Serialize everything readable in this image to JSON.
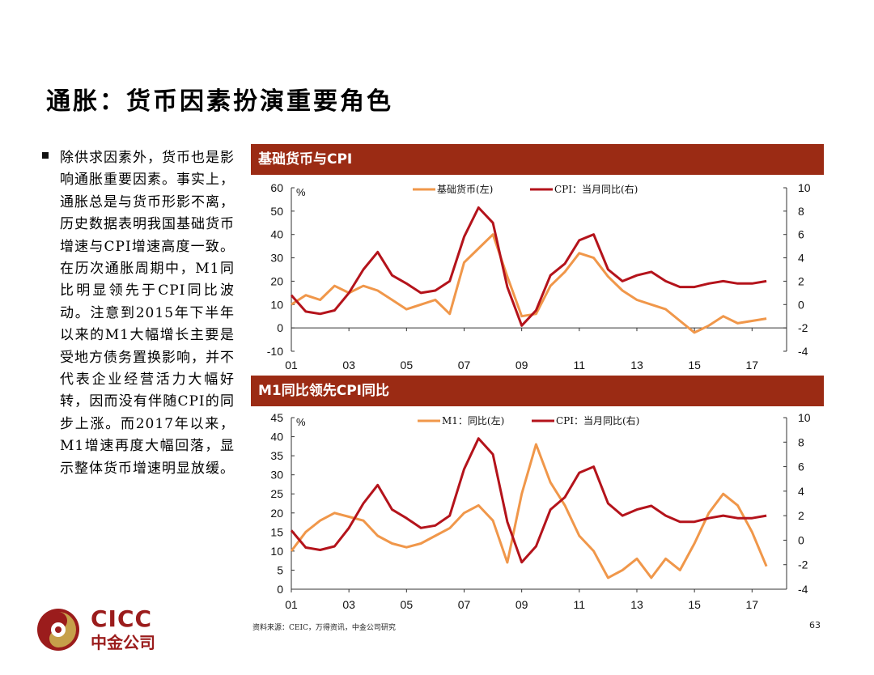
{
  "page": {
    "title": "通胀：货币因素扮演重要角色",
    "bullet": "除供求因素外，货币也是影响通胀重要因素。事实上，通胀总是与货币形影不离，历史数据表明我国基础货币增速与CPI增速高度一致。在历次通胀周期中，M1同比明显领先于CPI同比波动。注意到2015年下半年以来的M1大幅增长主要是受地方债务置换影响，并不代表企业经营活力大幅好转，因而没有伴随CPI的同步上涨。而2017年以来，M1增速再度大幅回落，显示整体货币增速明显放缓。",
    "source": "资料来源：CEIC，万得资讯，中金公司研究",
    "page_number": "63",
    "logo": {
      "latin": "CICC",
      "chinese": "中金公司"
    }
  },
  "colors": {
    "header_bg": "#9b2b14",
    "orange": "#f0974a",
    "red": "#b4131b",
    "brand": "#9b1c1c"
  },
  "chart_data": [
    {
      "type": "line",
      "title": "基础货币与CPI",
      "unit_left": "%",
      "x_ticks": [
        "01",
        "03",
        "05",
        "07",
        "09",
        "11",
        "13",
        "15",
        "17"
      ],
      "y_left": {
        "ticks": [
          60,
          50,
          40,
          30,
          20,
          10,
          0,
          -10
        ],
        "range": [
          -10,
          60
        ]
      },
      "y_right": {
        "ticks": [
          10,
          8,
          6,
          4,
          2,
          0,
          -2,
          -4
        ],
        "range": [
          -4,
          10
        ]
      },
      "series": [
        {
          "name": "基础货币(左)",
          "axis": "left",
          "x": [
            2001,
            2001.5,
            2002,
            2002.5,
            2003,
            2003.5,
            2004,
            2004.5,
            2005,
            2005.5,
            2006,
            2006.5,
            2007,
            2007.5,
            2008,
            2008.5,
            2009,
            2009.5,
            2010,
            2010.5,
            2011,
            2011.5,
            2012,
            2012.5,
            2013,
            2013.5,
            2014,
            2014.5,
            2015,
            2015.5,
            2016,
            2016.5,
            2017,
            2017.5
          ],
          "y": [
            10,
            14,
            12,
            18,
            15,
            18,
            16,
            12,
            8,
            10,
            12,
            6,
            28,
            34,
            40,
            22,
            5,
            6,
            18,
            24,
            32,
            30,
            22,
            16,
            12,
            10,
            8,
            3,
            -2,
            1,
            5,
            2,
            3,
            4
          ]
        },
        {
          "name": "CPI：当月同比(右)",
          "axis": "right",
          "x": [
            2001,
            2001.5,
            2002,
            2002.5,
            2003,
            2003.5,
            2004,
            2004.5,
            2005,
            2005.5,
            2006,
            2006.5,
            2007,
            2007.5,
            2008,
            2008.5,
            2009,
            2009.5,
            2010,
            2010.5,
            2011,
            2011.5,
            2012,
            2012.5,
            2013,
            2013.5,
            2014,
            2014.5,
            2015,
            2015.5,
            2016,
            2016.5,
            2017,
            2017.5
          ],
          "y": [
            0.8,
            -0.6,
            -0.8,
            -0.5,
            1.0,
            3.0,
            4.5,
            2.5,
            1.8,
            1.0,
            1.2,
            2.0,
            5.8,
            8.3,
            7.0,
            1.5,
            -1.8,
            -0.5,
            2.5,
            3.5,
            5.5,
            6.0,
            3.0,
            2.0,
            2.5,
            2.8,
            2.0,
            1.5,
            1.5,
            1.8,
            2.0,
            1.8,
            1.8,
            2.0
          ]
        }
      ]
    },
    {
      "type": "line",
      "title": "M1同比领先CPI同比",
      "unit_left": "%",
      "x_ticks": [
        "01",
        "03",
        "05",
        "07",
        "09",
        "11",
        "13",
        "15",
        "17"
      ],
      "y_left": {
        "ticks": [
          45,
          40,
          35,
          30,
          25,
          20,
          15,
          10,
          5,
          0
        ],
        "range": [
          0,
          45
        ]
      },
      "y_right": {
        "ticks": [
          10,
          8,
          6,
          4,
          2,
          0,
          -2,
          -4
        ],
        "range": [
          -4,
          10
        ]
      },
      "series": [
        {
          "name": "M1：同比(左)",
          "axis": "left",
          "x": [
            2001,
            2001.5,
            2002,
            2002.5,
            2003,
            2003.5,
            2004,
            2004.5,
            2005,
            2005.5,
            2006,
            2006.5,
            2007,
            2007.5,
            2008,
            2008.5,
            2009,
            2009.5,
            2010,
            2010.5,
            2011,
            2011.5,
            2012,
            2012.5,
            2013,
            2013.5,
            2014,
            2014.5,
            2015,
            2015.5,
            2016,
            2016.5,
            2017,
            2017.5
          ],
          "y": [
            10,
            15,
            18,
            20,
            19,
            18,
            14,
            12,
            11,
            12,
            14,
            16,
            20,
            22,
            18,
            7,
            25,
            38,
            28,
            22,
            14,
            10,
            3,
            5,
            8,
            3,
            8,
            5,
            12,
            20,
            25,
            22,
            15,
            6
          ]
        },
        {
          "name": "CPI：当月同比(右)",
          "axis": "right",
          "x": [
            2001,
            2001.5,
            2002,
            2002.5,
            2003,
            2003.5,
            2004,
            2004.5,
            2005,
            2005.5,
            2006,
            2006.5,
            2007,
            2007.5,
            2008,
            2008.5,
            2009,
            2009.5,
            2010,
            2010.5,
            2011,
            2011.5,
            2012,
            2012.5,
            2013,
            2013.5,
            2014,
            2014.5,
            2015,
            2015.5,
            2016,
            2016.5,
            2017,
            2017.5
          ],
          "y": [
            0.8,
            -0.6,
            -0.8,
            -0.5,
            1.0,
            3.0,
            4.5,
            2.5,
            1.8,
            1.0,
            1.2,
            2.0,
            5.8,
            8.3,
            7.0,
            1.5,
            -1.8,
            -0.5,
            2.5,
            3.5,
            5.5,
            6.0,
            3.0,
            2.0,
            2.5,
            2.8,
            2.0,
            1.5,
            1.5,
            1.8,
            2.0,
            1.8,
            1.8,
            2.0
          ]
        }
      ]
    }
  ]
}
